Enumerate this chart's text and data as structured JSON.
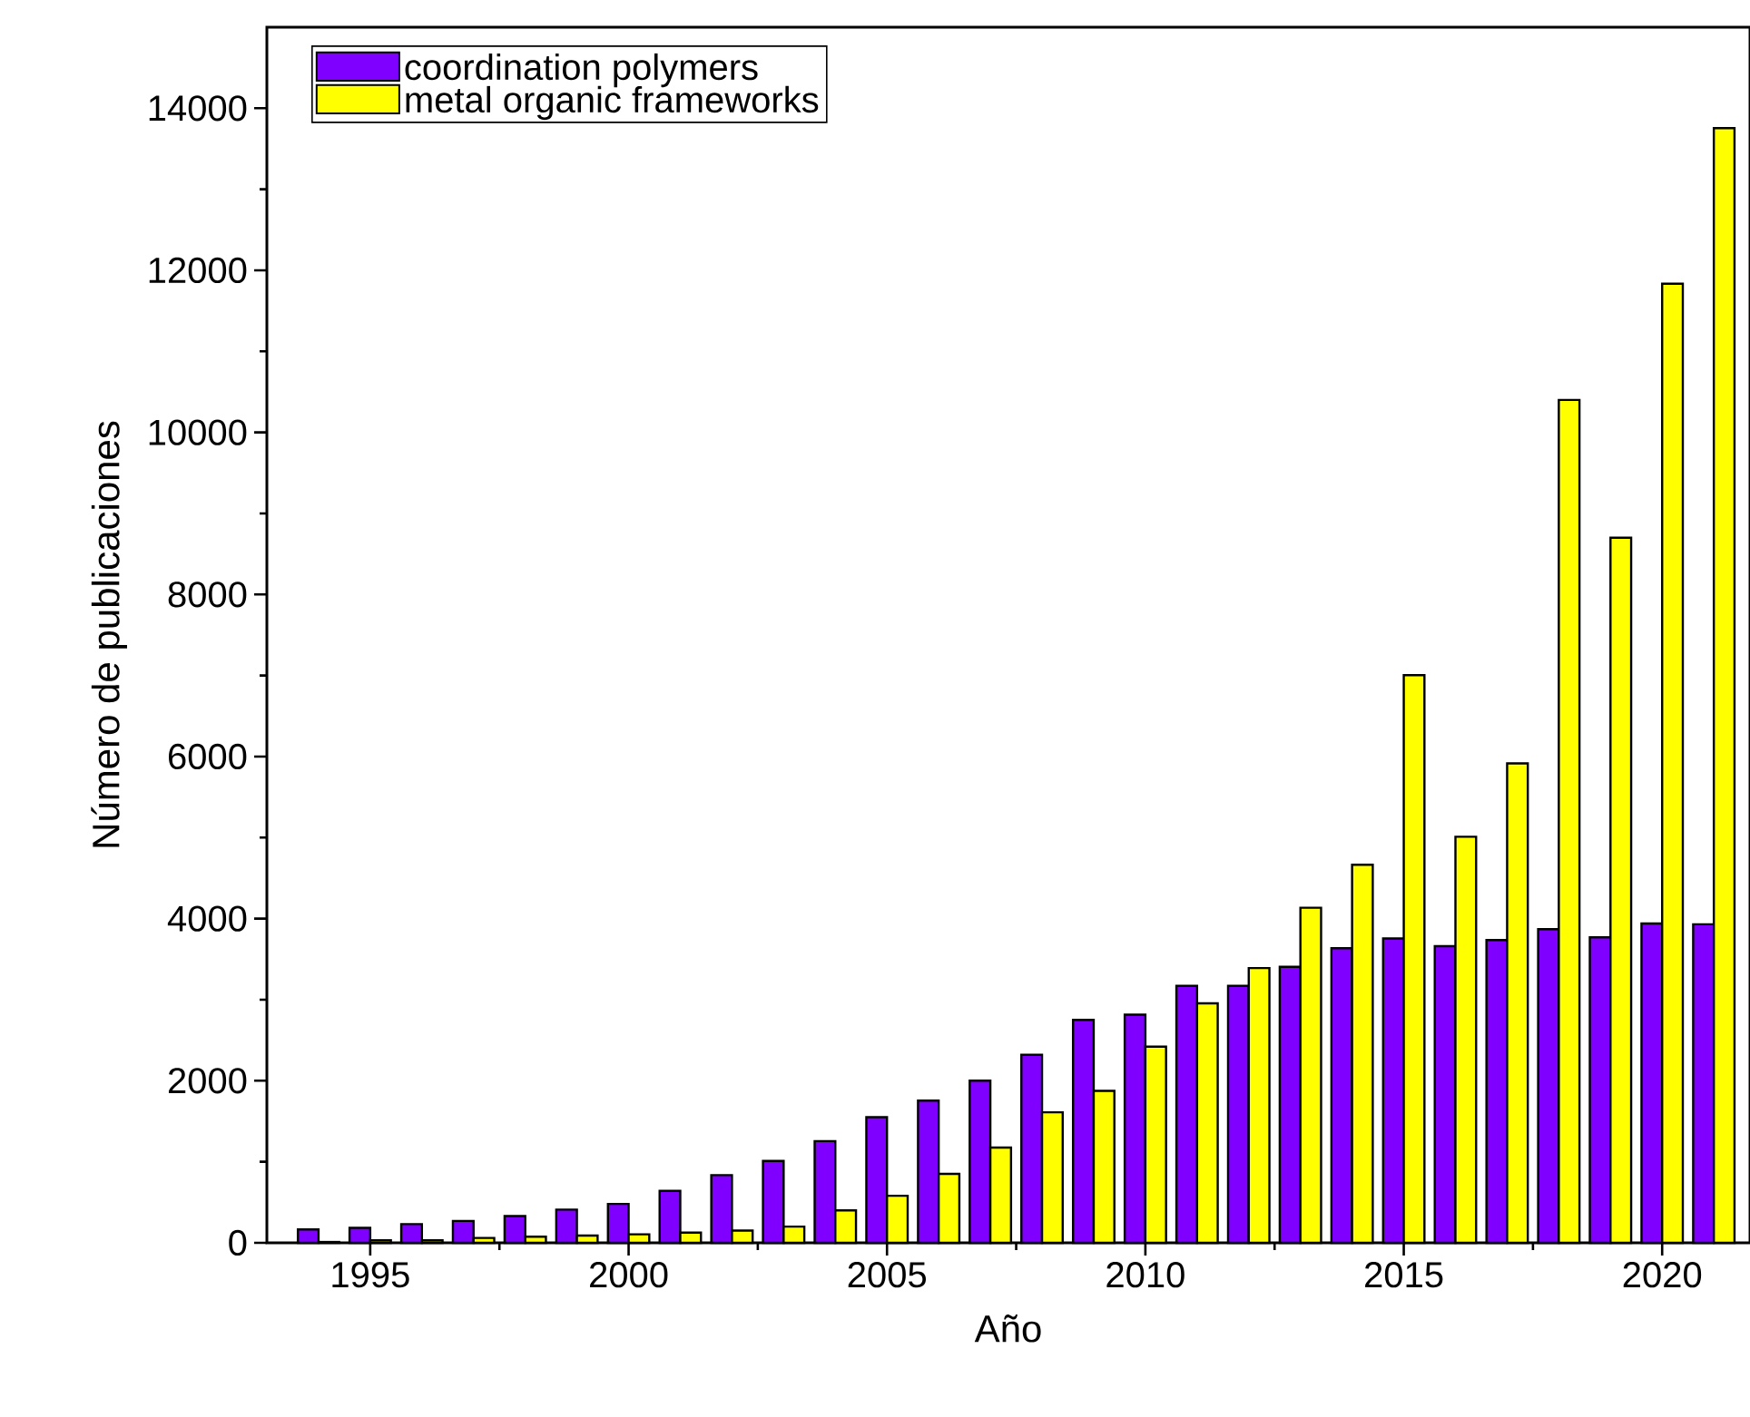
{
  "chart_data": {
    "type": "bar",
    "xlabel": "Año",
    "ylabel": "Número de publicaciones",
    "x": [
      1994,
      1995,
      1996,
      1997,
      1998,
      1999,
      2000,
      2001,
      2002,
      2003,
      2004,
      2005,
      2006,
      2007,
      2008,
      2009,
      2010,
      2011,
      2012,
      2013,
      2014,
      2015,
      2016,
      2017,
      2018,
      2019,
      2020,
      2021
    ],
    "series": [
      {
        "name": "coordination polymers",
        "color": "#7f00ff",
        "values": [
          165,
          185,
          230,
          270,
          330,
          410,
          480,
          640,
          835,
          1010,
          1255,
          1550,
          1755,
          2000,
          2320,
          2750,
          2815,
          3170,
          3170,
          3405,
          3635,
          3755,
          3660,
          3735,
          3870,
          3770,
          3940,
          3930
        ]
      },
      {
        "name": "metal organic frameworks",
        "color": "#ffff00",
        "values": [
          10,
          30,
          30,
          60,
          75,
          90,
          105,
          125,
          150,
          200,
          400,
          580,
          850,
          1175,
          1610,
          1875,
          2420,
          2955,
          3390,
          4135,
          4665,
          7005,
          5010,
          5915,
          10400,
          8700,
          11835,
          13755
        ]
      }
    ],
    "xlim": [
      1993,
      2021.7
    ],
    "ylim": [
      0,
      15000
    ],
    "xticks": [
      1995,
      2000,
      2005,
      2010,
      2015,
      2020
    ],
    "yticks": [
      0,
      2000,
      4000,
      6000,
      8000,
      10000,
      12000,
      14000
    ],
    "legend": "top left"
  }
}
